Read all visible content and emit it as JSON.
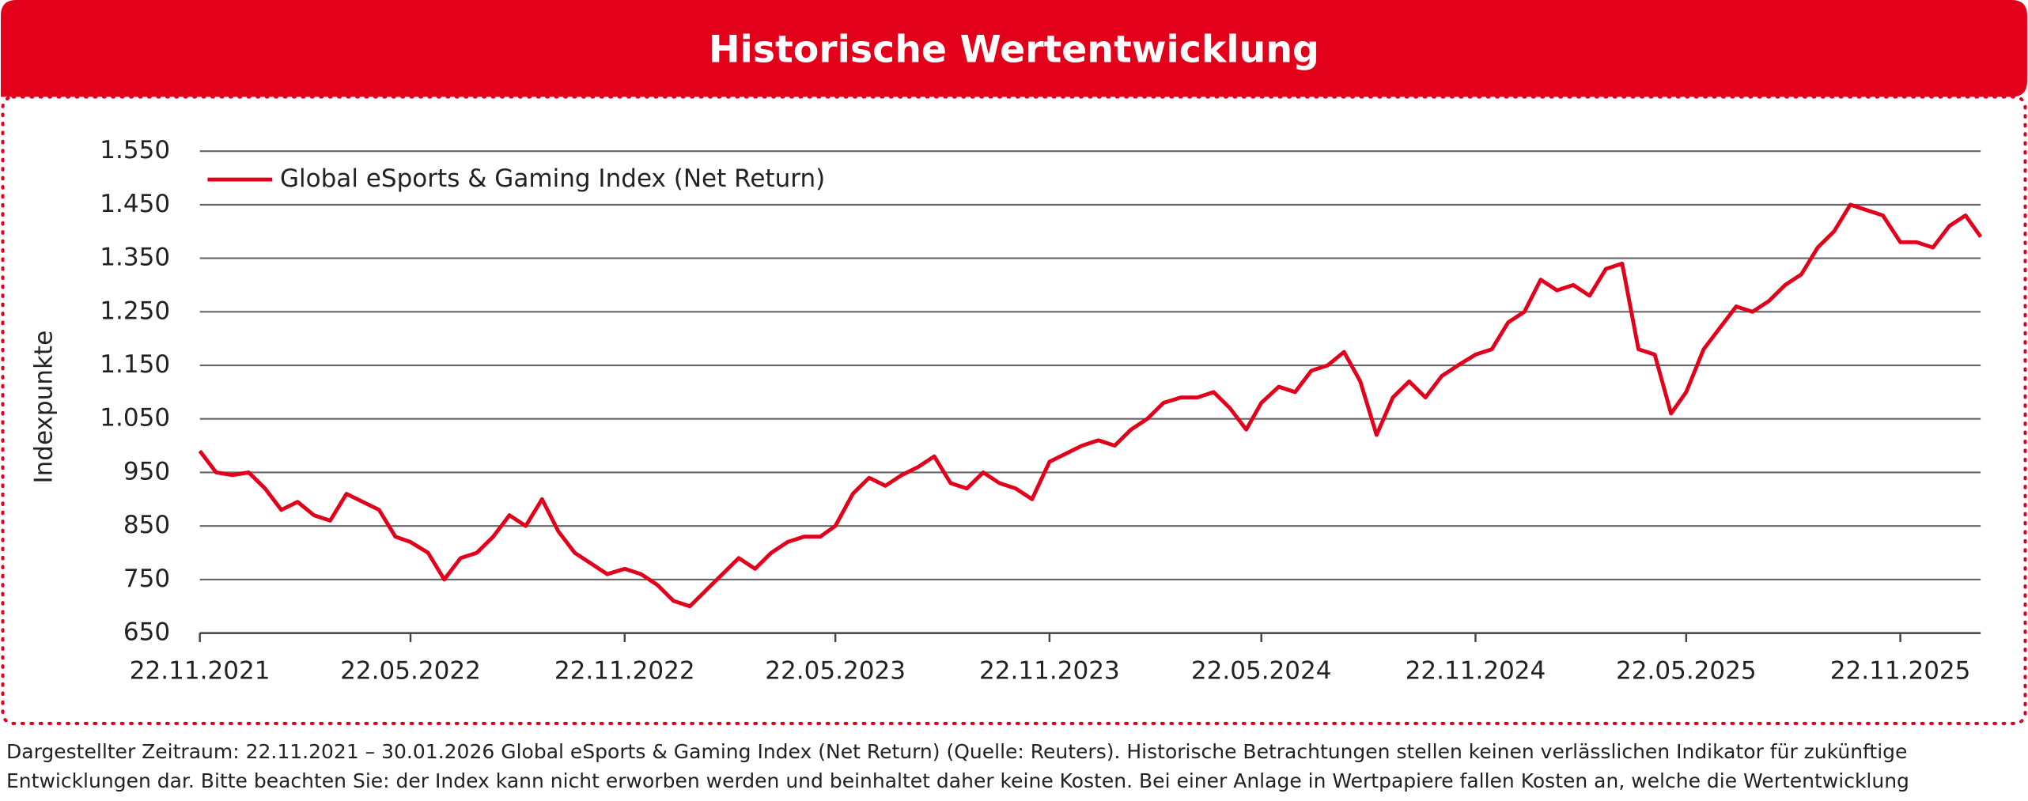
{
  "chart_data": {
    "type": "line",
    "title": "Historische Wertentwicklung",
    "y_label": "Indexpunkte",
    "footnote": "Dargestellter Zeitraum: 22.11.2021 – 30.01.2026 Global eSports & Gaming Index (Net Return) (Quelle: Reuters). Historische Betrachtungen stellen keinen verlässlichen Indikator für zukünftige Entwicklungen dar. Bitte beachten Sie: der Index kann nicht erworben werden und beinhaltet daher keine Kosten. Bei einer Anlage in Wertpapiere fallen Kosten an, welche die Wertentwicklung reduzieren.",
    "x": [
      "22.11.2021",
      "06.12.2021",
      "20.12.2021",
      "03.01.2022",
      "17.01.2022",
      "31.01.2022",
      "14.02.2022",
      "28.02.2022",
      "14.03.2022",
      "28.03.2022",
      "11.04.2022",
      "25.04.2022",
      "09.05.2022",
      "22.05.2022",
      "06.06.2022",
      "20.06.2022",
      "04.07.2022",
      "18.07.2022",
      "01.08.2022",
      "15.08.2022",
      "29.08.2022",
      "12.09.2022",
      "26.09.2022",
      "10.10.2022",
      "24.10.2022",
      "07.11.2022",
      "22.11.2022",
      "06.12.2022",
      "20.12.2022",
      "03.01.2023",
      "17.01.2023",
      "31.01.2023",
      "14.02.2023",
      "28.02.2023",
      "14.03.2023",
      "28.03.2023",
      "11.04.2023",
      "25.04.2023",
      "09.05.2023",
      "22.05.2023",
      "06.06.2023",
      "20.06.2023",
      "04.07.2023",
      "18.07.2023",
      "01.08.2023",
      "15.08.2023",
      "29.08.2023",
      "12.09.2023",
      "26.09.2023",
      "10.10.2023",
      "24.10.2023",
      "07.11.2023",
      "22.11.2023",
      "06.12.2023",
      "20.12.2023",
      "03.01.2024",
      "17.01.2024",
      "31.01.2024",
      "14.02.2024",
      "28.02.2024",
      "14.03.2024",
      "28.03.2024",
      "11.04.2024",
      "25.04.2024",
      "09.05.2024",
      "22.05.2024",
      "06.06.2024",
      "20.06.2024",
      "04.07.2024",
      "18.07.2024",
      "01.08.2024",
      "15.08.2024",
      "29.08.2024",
      "12.09.2024",
      "26.09.2024",
      "10.10.2024",
      "24.10.2024",
      "07.11.2024",
      "22.11.2024",
      "06.12.2024",
      "20.12.2024",
      "03.01.2025",
      "17.01.2025",
      "31.01.2025",
      "14.02.2025",
      "28.02.2025",
      "14.03.2025",
      "28.03.2025",
      "11.04.2025",
      "25.04.2025",
      "09.05.2025",
      "22.05.2025",
      "06.06.2025",
      "20.06.2025",
      "04.07.2025",
      "18.07.2025",
      "01.08.2025",
      "15.08.2025",
      "29.08.2025",
      "12.09.2025",
      "26.09.2025",
      "10.10.2025",
      "24.10.2025",
      "07.11.2025",
      "22.11.2025",
      "06.12.2025",
      "20.12.2025",
      "03.01.2026",
      "17.01.2026",
      "30.01.2026"
    ],
    "series": [
      {
        "name": "Global eSports & Gaming Index (Net Return)",
        "color": "#e2001a",
        "values": [
          990,
          950,
          945,
          950,
          920,
          880,
          895,
          870,
          860,
          910,
          895,
          880,
          830,
          820,
          800,
          750,
          790,
          800,
          830,
          870,
          850,
          900,
          840,
          800,
          780,
          760,
          770,
          760,
          740,
          710,
          700,
          730,
          760,
          790,
          770,
          800,
          820,
          830,
          830,
          850,
          910,
          940,
          925,
          945,
          960,
          980,
          930,
          920,
          950,
          930,
          920,
          900,
          970,
          985,
          1000,
          1010,
          1000,
          1030,
          1050,
          1080,
          1090,
          1090,
          1100,
          1070,
          1030,
          1080,
          1110,
          1100,
          1140,
          1150,
          1175,
          1120,
          1020,
          1090,
          1120,
          1090,
          1130,
          1150,
          1170,
          1180,
          1230,
          1250,
          1310,
          1290,
          1300,
          1280,
          1330,
          1340,
          1180,
          1170,
          1060,
          1100,
          1180,
          1220,
          1260,
          1250,
          1270,
          1300,
          1320,
          1370,
          1400,
          1450,
          1440,
          1430,
          1380,
          1380,
          1370,
          1410,
          1430,
          1390
        ]
      }
    ],
    "xlim": [
      "22.11.2021",
      "30.01.2026"
    ],
    "xticks": [
      "22.11.2021",
      "22.05.2022",
      "22.11.2022",
      "22.05.2023",
      "22.11.2023",
      "22.05.2024",
      "22.11.2024",
      "22.05.2025",
      "22.11.2025"
    ],
    "ylim": [
      650,
      1550
    ],
    "yticks": [
      650,
      750,
      850,
      950,
      {
        "value": 1050,
        "label": "1.050"
      },
      {
        "value": 1150,
        "label": "1.150"
      },
      {
        "value": 1250,
        "label": "1.250"
      },
      {
        "value": 1350,
        "label": "1.350"
      },
      {
        "value": 1450,
        "label": "1.450"
      },
      {
        "value": 1550,
        "label": "1.550"
      }
    ],
    "grid": true,
    "legend": "top-left"
  }
}
